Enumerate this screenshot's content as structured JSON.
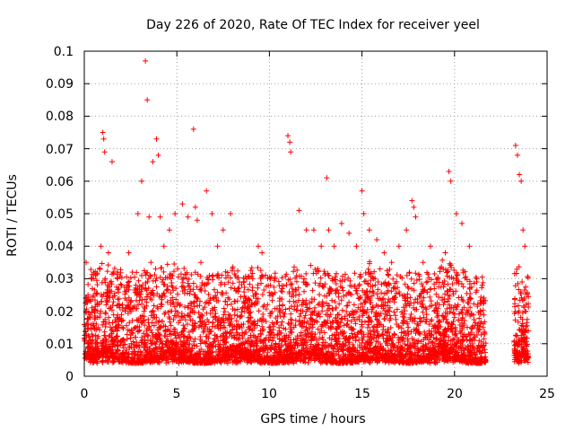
{
  "chart_data": {
    "type": "scatter",
    "title": "Day 226 of 2020, Rate Of TEC Index for receiver yeel",
    "xlabel": "GPS time / hours",
    "ylabel": "ROTI / TECUs",
    "xlim": [
      0,
      25
    ],
    "ylim": [
      0,
      0.1
    ],
    "xticks": [
      "0",
      "5",
      "10",
      "15",
      "20",
      "25"
    ],
    "yticks": [
      "0",
      "0.01",
      "0.02",
      "0.03",
      "0.04",
      "0.05",
      "0.06",
      "0.07",
      "0.08",
      "0.09",
      "0.1"
    ],
    "grid": true,
    "legend": "none",
    "marker": "+",
    "color": "#ff0000",
    "data_gap_hours": [
      21.7,
      23.2
    ],
    "series": [
      {
        "x": [
          0.1,
          0.2,
          0.3,
          0.5,
          0.7,
          0.9,
          1.0,
          1.05,
          1.1,
          1.3,
          1.5,
          1.8,
          2.2,
          2.4,
          2.6,
          2.9,
          3.1,
          3.3,
          3.4,
          3.5,
          3.6,
          3.7,
          3.9,
          4.0,
          4.1,
          4.3,
          4.6,
          4.9,
          5.3,
          5.6,
          5.9,
          6.0,
          6.1,
          6.3,
          6.6,
          6.9,
          7.2,
          7.5,
          7.9,
          8.3,
          8.7,
          9.1,
          9.4,
          9.6,
          9.9,
          10.3,
          10.7,
          11.0,
          11.1,
          11.15,
          11.6,
          12.0,
          12.4,
          12.8,
          13.1,
          13.2,
          13.5,
          13.9,
          14.3,
          14.7,
          15.0,
          15.1,
          15.4,
          15.8,
          16.2,
          16.6,
          17.0,
          17.4,
          17.7,
          17.8,
          17.9,
          18.3,
          18.7,
          19.1,
          19.5,
          19.7,
          19.8,
          20.1,
          20.4,
          20.8,
          21.2,
          21.5,
          23.3,
          23.4,
          23.5,
          23.6,
          23.7,
          23.8
        ],
        "y": [
          0.035,
          0.025,
          0.018,
          0.03,
          0.022,
          0.04,
          0.075,
          0.073,
          0.069,
          0.038,
          0.066,
          0.03,
          0.024,
          0.038,
          0.032,
          0.05,
          0.06,
          0.097,
          0.085,
          0.049,
          0.035,
          0.066,
          0.073,
          0.068,
          0.049,
          0.04,
          0.045,
          0.05,
          0.053,
          0.049,
          0.076,
          0.052,
          0.048,
          0.035,
          0.057,
          0.05,
          0.04,
          0.045,
          0.05,
          0.026,
          0.024,
          0.03,
          0.04,
          0.038,
          0.022,
          0.03,
          0.026,
          0.074,
          0.072,
          0.069,
          0.051,
          0.045,
          0.045,
          0.04,
          0.061,
          0.045,
          0.04,
          0.047,
          0.044,
          0.04,
          0.057,
          0.05,
          0.045,
          0.042,
          0.038,
          0.035,
          0.04,
          0.045,
          0.054,
          0.052,
          0.049,
          0.035,
          0.04,
          0.03,
          0.038,
          0.063,
          0.06,
          0.05,
          0.047,
          0.04,
          0.03,
          0.028,
          0.071,
          0.068,
          0.062,
          0.06,
          0.045,
          0.04
        ]
      }
    ]
  }
}
